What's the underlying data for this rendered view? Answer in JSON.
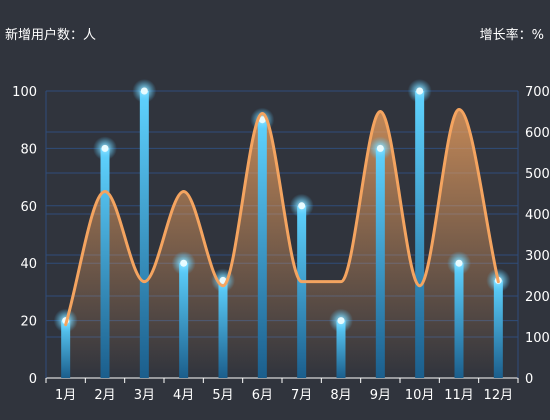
{
  "chart_data": {
    "type": "bar",
    "categories": [
      "1月",
      "2月",
      "3月",
      "4月",
      "5月",
      "6月",
      "7月",
      "8月",
      "9月",
      "10月",
      "11月",
      "12月"
    ],
    "left_unit_label": "新增用户数：人",
    "right_unit_label": "增长率：%",
    "y_left": {
      "min": 0,
      "max": 100,
      "ticks": [
        "0",
        "20",
        "40",
        "60",
        "80",
        "100"
      ]
    },
    "y_right": {
      "min": 0,
      "max": 700,
      "ticks": [
        "0",
        "100",
        "200",
        "300",
        "400",
        "500",
        "600",
        "700"
      ]
    },
    "grid": true,
    "series": [
      {
        "type": "bar",
        "axis": "left",
        "values": [
          20,
          80,
          100,
          40,
          34,
          90,
          60,
          20,
          80,
          100,
          40,
          34
        ]
      },
      {
        "type": "line",
        "smooth": true,
        "area": true,
        "axis": "right",
        "values": [
          130,
          455,
          235,
          455,
          225,
          645,
          235,
          235,
          650,
          225,
          655,
          235
        ]
      }
    ],
    "colors": {
      "background": "#30343d",
      "bar": "#4fc3f7",
      "bar_bottom": "#1b5e8c",
      "line": "#f4a460",
      "grid": "#2f4d7a",
      "text": "#ffffff"
    }
  }
}
